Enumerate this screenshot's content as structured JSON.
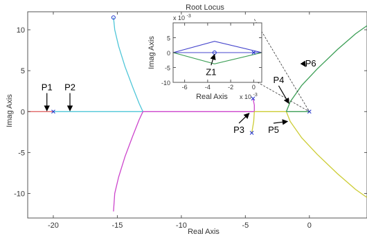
{
  "chart_data": [
    {
      "type": "line",
      "title": "Root Locus",
      "xlabel": "Real Axis",
      "ylabel": "Imag Axis",
      "xlim": [
        -22,
        4.5
      ],
      "ylim": [
        -13,
        12.2
      ],
      "xticks": [
        -20,
        -15,
        -10,
        -5,
        0
      ],
      "yticks": [
        -10,
        -5,
        0,
        5,
        10
      ],
      "xtick_labels": [
        "-20",
        "-15",
        "-10",
        "-5",
        "0"
      ],
      "ytick_labels": [
        "-10",
        "-5",
        "0",
        "5",
        "10"
      ],
      "grid": false,
      "series": [
        {
          "color": "#e06666",
          "points": [
            [
              -22,
              0
            ],
            [
              -20,
              0
            ]
          ]
        },
        {
          "color": "#4fc6d8",
          "points": [
            [
              -20,
              0
            ],
            [
              -13,
              0
            ]
          ]
        },
        {
          "color": "#4fc6d8",
          "points": [
            [
              -13,
              0
            ],
            [
              -13.3,
              1
            ],
            [
              -13.8,
              3
            ],
            [
              -14.4,
              5.5
            ],
            [
              -14.9,
              8
            ],
            [
              -15.2,
              10
            ],
            [
              -15.3,
              11.5
            ]
          ]
        },
        {
          "color": "#cc44cc",
          "points": [
            [
              -13,
              0
            ],
            [
              -13.3,
              -1
            ],
            [
              -13.8,
              -3
            ],
            [
              -14.4,
              -5.5
            ],
            [
              -14.9,
              -8
            ],
            [
              -15.2,
              -10
            ],
            [
              -15.3,
              -12.2
            ]
          ]
        },
        {
          "color": "#cc44cc",
          "points": [
            [
              -13,
              0
            ],
            [
              -4.3,
              0
            ]
          ]
        },
        {
          "color": "#cc44cc",
          "points": [
            [
              -4.3,
              0
            ],
            [
              -4.3,
              0.8
            ],
            [
              -4.4,
              1.6
            ]
          ]
        },
        {
          "color": "#cccc33",
          "points": [
            [
              -4.3,
              0
            ],
            [
              -4.35,
              -1.2
            ],
            [
              -4.5,
              -2.6
            ]
          ]
        },
        {
          "color": "#cccc33",
          "points": [
            [
              -4.3,
              0
            ],
            [
              -1.8,
              0
            ]
          ]
        },
        {
          "color": "#3b9e55",
          "points": [
            [
              -1.8,
              0
            ],
            [
              -1.5,
              1.2
            ],
            [
              -0.6,
              3.2
            ],
            [
              0.6,
              5.2
            ],
            [
              2.2,
              7.6
            ],
            [
              3.6,
              9.5
            ],
            [
              4.5,
              10.5
            ]
          ]
        },
        {
          "color": "#cccc33",
          "points": [
            [
              -1.8,
              0
            ],
            [
              -1.5,
              -1.2
            ],
            [
              -0.6,
              -3.2
            ],
            [
              0.6,
              -5.2
            ],
            [
              2.2,
              -7.6
            ],
            [
              3.6,
              -9.5
            ],
            [
              4.5,
              -10.5
            ]
          ]
        },
        {
          "color": "#3b9e55",
          "points": [
            [
              -1.8,
              0
            ],
            [
              0,
              0
            ]
          ]
        }
      ],
      "markers": {
        "color": "#2233cc",
        "poles": [
          [
            -20,
            0
          ],
          [
            0,
            0
          ],
          [
            -4.4,
            1.6
          ],
          [
            -4.5,
            -2.6
          ]
        ],
        "zeros": [
          [
            -15.3,
            11.5
          ]
        ]
      },
      "annotations": [
        {
          "label": "P1",
          "text_at": [
            -20.5,
            2.6
          ],
          "arrow_to": [
            -20.5,
            0.1
          ]
        },
        {
          "label": "P2",
          "text_at": [
            -18.7,
            2.6
          ],
          "arrow_to": [
            -18.7,
            0.1
          ]
        },
        {
          "label": "P3",
          "text_at": [
            -5.5,
            -2.6
          ],
          "arrow_to": [
            -4.7,
            -0.2
          ]
        },
        {
          "label": "P4",
          "text_at": [
            -2.4,
            3.5
          ],
          "arrow_to": [
            -1.6,
            1.0
          ]
        },
        {
          "label": "P5",
          "text_at": [
            -2.8,
            -2.6
          ],
          "arrow_to": [
            -1.7,
            -1.2
          ]
        },
        {
          "label": "P6",
          "text_at": [
            0.1,
            5.5
          ],
          "arrow_to": [
            -0.3,
            5.5
          ]
        }
      ],
      "zoom_lines": [
        [
          [
            -4.3,
            11.3
          ],
          [
            0,
            0
          ]
        ],
        [
          [
            -4.3,
            3.8
          ],
          [
            0,
            0
          ]
        ]
      ]
    },
    {
      "type": "line",
      "title": "",
      "xlabel": "Real Axis",
      "ylabel": "Imag Axis",
      "x_exponent_label": "x 10",
      "x_exponent": "-3",
      "y_exponent_label": "x 10",
      "y_exponent": "-3",
      "xlim": [
        -7,
        0.7
      ],
      "ylim": [
        -10,
        10
      ],
      "xticks": [
        -6,
        -4,
        -2,
        0
      ],
      "yticks": [
        -10,
        -5,
        0,
        5
      ],
      "xtick_labels": [
        "-6",
        "-4",
        "-2",
        "0"
      ],
      "ytick_labels": [
        "-10",
        "-5",
        "0",
        "5"
      ],
      "grid": false,
      "series": [
        {
          "color": "#4444cc",
          "points": [
            [
              -7,
              0
            ],
            [
              -3.4,
              3.8
            ],
            [
              0.7,
              0
            ]
          ]
        },
        {
          "color": "#3b9e55",
          "points": [
            [
              -7,
              0
            ],
            [
              -3.4,
              -3.8
            ],
            [
              0.7,
              0
            ]
          ]
        },
        {
          "color": "#4444cc",
          "points": [
            [
              -7,
              0
            ],
            [
              0.7,
              0
            ]
          ]
        }
      ],
      "markers": {
        "color": "#2233cc",
        "zeros": [
          [
            -3.4,
            0
          ]
        ],
        "poles": [
          [
            0,
            0
          ]
        ]
      },
      "annotations": [
        {
          "label": "Z1",
          "text_at": [
            -3.7,
            -7.5
          ],
          "arrow_to": [
            -3.4,
            -0.6
          ]
        }
      ]
    }
  ]
}
